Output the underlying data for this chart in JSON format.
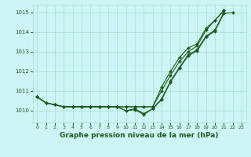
{
  "title": "Graphe pression niveau de la mer (hPa)",
  "bg_color": "#cef5f5",
  "line_color": "#1a5c1a",
  "grid_color": "#aaddcc",
  "x_ticks": [
    0,
    1,
    2,
    3,
    4,
    5,
    6,
    7,
    8,
    9,
    10,
    11,
    12,
    13,
    14,
    15,
    16,
    17,
    18,
    19,
    20,
    21,
    22,
    23
  ],
  "y_ticks": [
    1010,
    1011,
    1012,
    1013,
    1014,
    1015
  ],
  "ylim": [
    1009.4,
    1015.4
  ],
  "xlim": [
    -0.5,
    23.5
  ],
  "series1": [
    1010.7,
    1010.4,
    1010.3,
    1010.2,
    1010.2,
    1010.2,
    1010.2,
    1010.2,
    1010.2,
    1010.2,
    1010.2,
    1010.2,
    1010.2,
    1010.2,
    1011.0,
    1011.8,
    1012.5,
    1013.0,
    1013.3,
    1014.1,
    1014.6,
    1015.1,
    null,
    null
  ],
  "series2": [
    1010.7,
    1010.4,
    1010.3,
    1010.2,
    1010.2,
    1010.2,
    1010.2,
    1010.2,
    1010.2,
    1010.2,
    1010.2,
    1010.2,
    1010.2,
    1010.2,
    1011.2,
    1012.0,
    1012.7,
    1013.2,
    1013.4,
    1014.2,
    1014.6,
    1015.1,
    null,
    null
  ],
  "series3": [
    1010.7,
    1010.4,
    1010.3,
    1010.2,
    1010.2,
    1010.2,
    1010.2,
    1010.2,
    1010.2,
    1010.2,
    1010.0,
    1010.1,
    1009.85,
    1010.1,
    1010.6,
    1011.5,
    1012.2,
    1012.85,
    1013.1,
    1013.8,
    1014.1,
    1015.0,
    null,
    null
  ],
  "series4": [
    1010.7,
    1010.4,
    1010.3,
    1010.2,
    1010.2,
    1010.2,
    1010.2,
    1010.2,
    1010.2,
    1010.2,
    1010.0,
    1010.05,
    1009.8,
    1010.1,
    1010.55,
    1011.45,
    1012.15,
    1012.8,
    1013.05,
    1013.75,
    1014.05,
    1014.95,
    1015.0,
    null
  ]
}
